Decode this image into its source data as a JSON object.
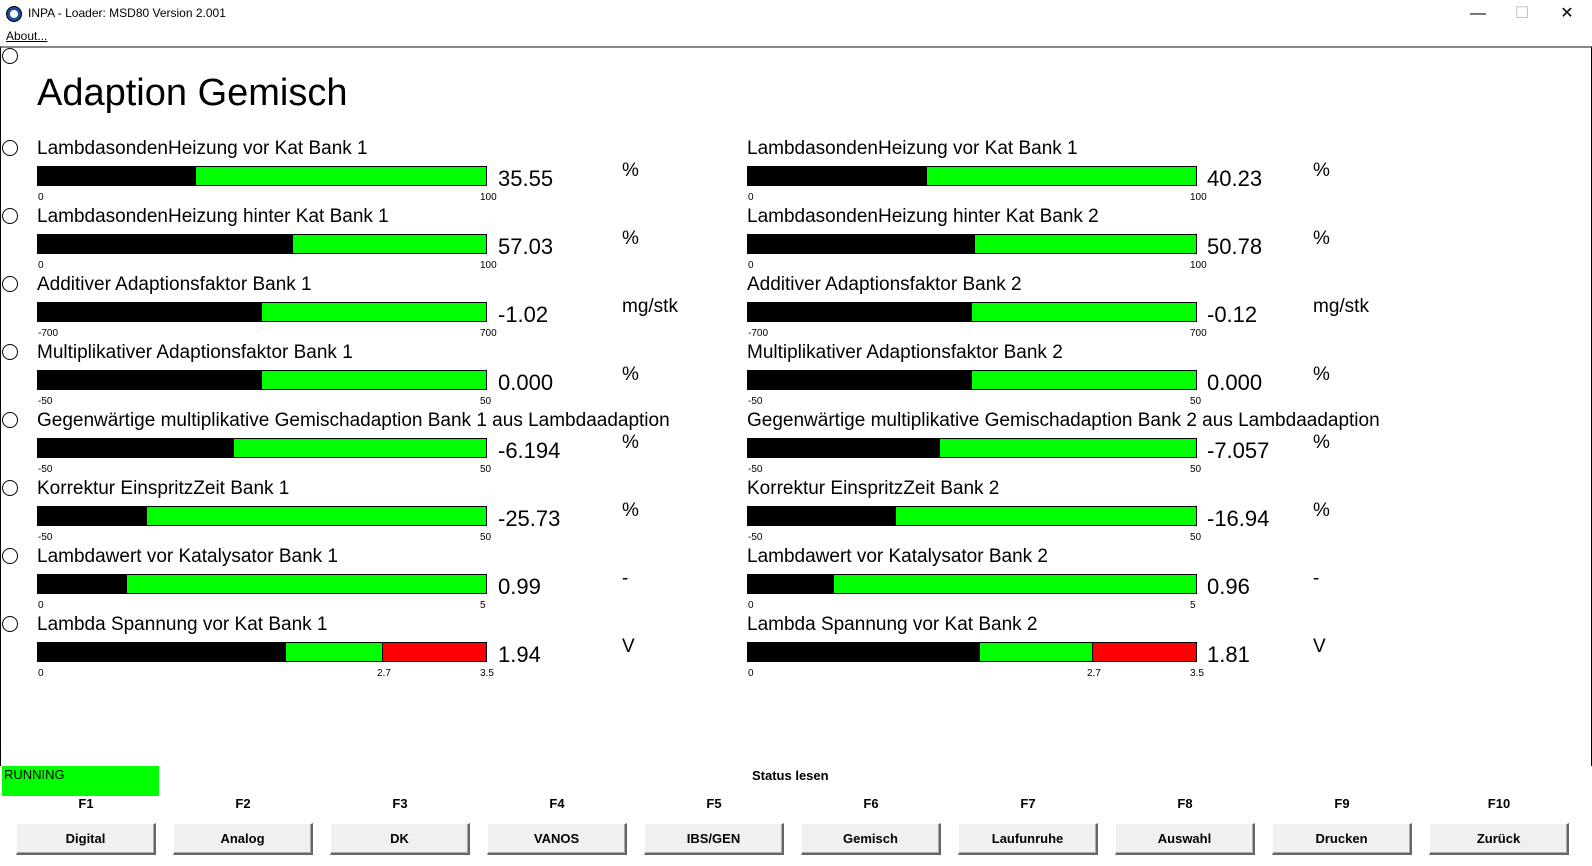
{
  "window": {
    "title": "INPA - Loader:  MSD80 Version 2.001",
    "minimize": "—",
    "maximize": "☐",
    "close": "✕"
  },
  "menu": {
    "about": "About..."
  },
  "heading": "Adaption Gemisch",
  "colors": {
    "bar_bg": "#00ff00",
    "bar_fill": "#000000",
    "bar_warn": "#ff0000",
    "running": "#00ff00"
  },
  "rows": [
    {
      "left": {
        "label": "LambdasondenHeizung vor Kat Bank 1",
        "value": "35.55",
        "unit": "%",
        "min": "0",
        "max": "100",
        "fill_percent": 35.3
      },
      "right": {
        "label": "LambdasondenHeizung vor Kat Bank 1",
        "value": "40.23",
        "unit": "%",
        "min": "0",
        "max": "100",
        "fill_percent": 40.0
      }
    },
    {
      "left": {
        "label": "LambdasondenHeizung hinter Kat Bank 1",
        "value": "57.03",
        "unit": "%",
        "min": "0",
        "max": "100",
        "fill_percent": 57.0
      },
      "right": {
        "label": "LambdasondenHeizung hinter Kat Bank 2",
        "value": "50.78",
        "unit": "%",
        "min": "0",
        "max": "100",
        "fill_percent": 50.7
      }
    },
    {
      "left": {
        "label": "Additiver Adaptionsfaktor Bank 1",
        "value": "-1.02",
        "unit": "mg/stk",
        "min": "-700",
        "max": "700",
        "fill_percent": 50.0
      },
      "right": {
        "label": "Additiver Adaptionsfaktor Bank 2",
        "value": "-0.12",
        "unit": "mg/stk",
        "min": "-700",
        "max": "700",
        "fill_percent": 49.9
      }
    },
    {
      "left": {
        "label": "Multiplikativer Adaptionsfaktor Bank 1",
        "value": "0.000",
        "unit": "%",
        "min": "-50",
        "max": "50",
        "fill_percent": 50.0
      },
      "right": {
        "label": "Multiplikativer Adaptionsfaktor Bank 2",
        "value": "0.000",
        "unit": "%",
        "min": "-50",
        "max": "50",
        "fill_percent": 50.0
      }
    },
    {
      "left": {
        "label": "Gegenwärtige multiplikative Gemischadaption Bank 1 aus Lambdaadaption",
        "value": "-6.194",
        "unit": "%",
        "min": "-50",
        "max": "50",
        "fill_percent": 43.8
      },
      "right": {
        "label": "Gegenwärtige multiplikative Gemischadaption Bank 2 aus Lambdaadaption",
        "value": "-7.057",
        "unit": "%",
        "min": "-50",
        "max": "50",
        "fill_percent": 42.9
      }
    },
    {
      "left": {
        "label": "Korrektur EinspritzZeit Bank 1",
        "value": "-25.73",
        "unit": "%",
        "min": "-50",
        "max": "50",
        "fill_percent": 24.3
      },
      "right": {
        "label": "Korrektur EinspritzZeit Bank 2",
        "value": "-16.94",
        "unit": "%",
        "min": "-50",
        "max": "50",
        "fill_percent": 33.1
      }
    },
    {
      "left": {
        "label": "Lambdawert vor Katalysator Bank 1",
        "value": "0.99",
        "unit": "-",
        "min": "0",
        "max": "5",
        "fill_percent": 19.8
      },
      "right": {
        "label": "Lambdawert vor Katalysator Bank 2",
        "value": "0.96",
        "unit": "-",
        "min": "0",
        "max": "5",
        "fill_percent": 19.2
      }
    },
    {
      "left": {
        "label": "Lambda Spannung vor Kat Bank 1",
        "value": "1.94",
        "unit": "V",
        "min": "0",
        "mid": "2.7",
        "max": "3.5",
        "fill_percent": 55.4,
        "warn_from_percent": 77.1
      },
      "right": {
        "label": "Lambda Spannung vor Kat Bank 2",
        "value": "1.81",
        "unit": "V",
        "min": "0",
        "mid": "2.7",
        "max": "3.5",
        "fill_percent": 51.7,
        "warn_from_percent": 77.1
      }
    }
  ],
  "status": {
    "running": "RUNNING",
    "text": "Status lesen"
  },
  "fkeys": [
    {
      "key": "F1",
      "label": "Digital"
    },
    {
      "key": "F2",
      "label": "Analog"
    },
    {
      "key": "F3",
      "label": "DK"
    },
    {
      "key": "F4",
      "label": "VANOS"
    },
    {
      "key": "F5",
      "label": "IBS/GEN"
    },
    {
      "key": "F6",
      "label": "Gemisch"
    },
    {
      "key": "F7",
      "label": "Laufunruhe"
    },
    {
      "key": "F8",
      "label": "Auswahl"
    },
    {
      "key": "F9",
      "label": "Drucken"
    },
    {
      "key": "F10",
      "label": "Zurück"
    }
  ]
}
